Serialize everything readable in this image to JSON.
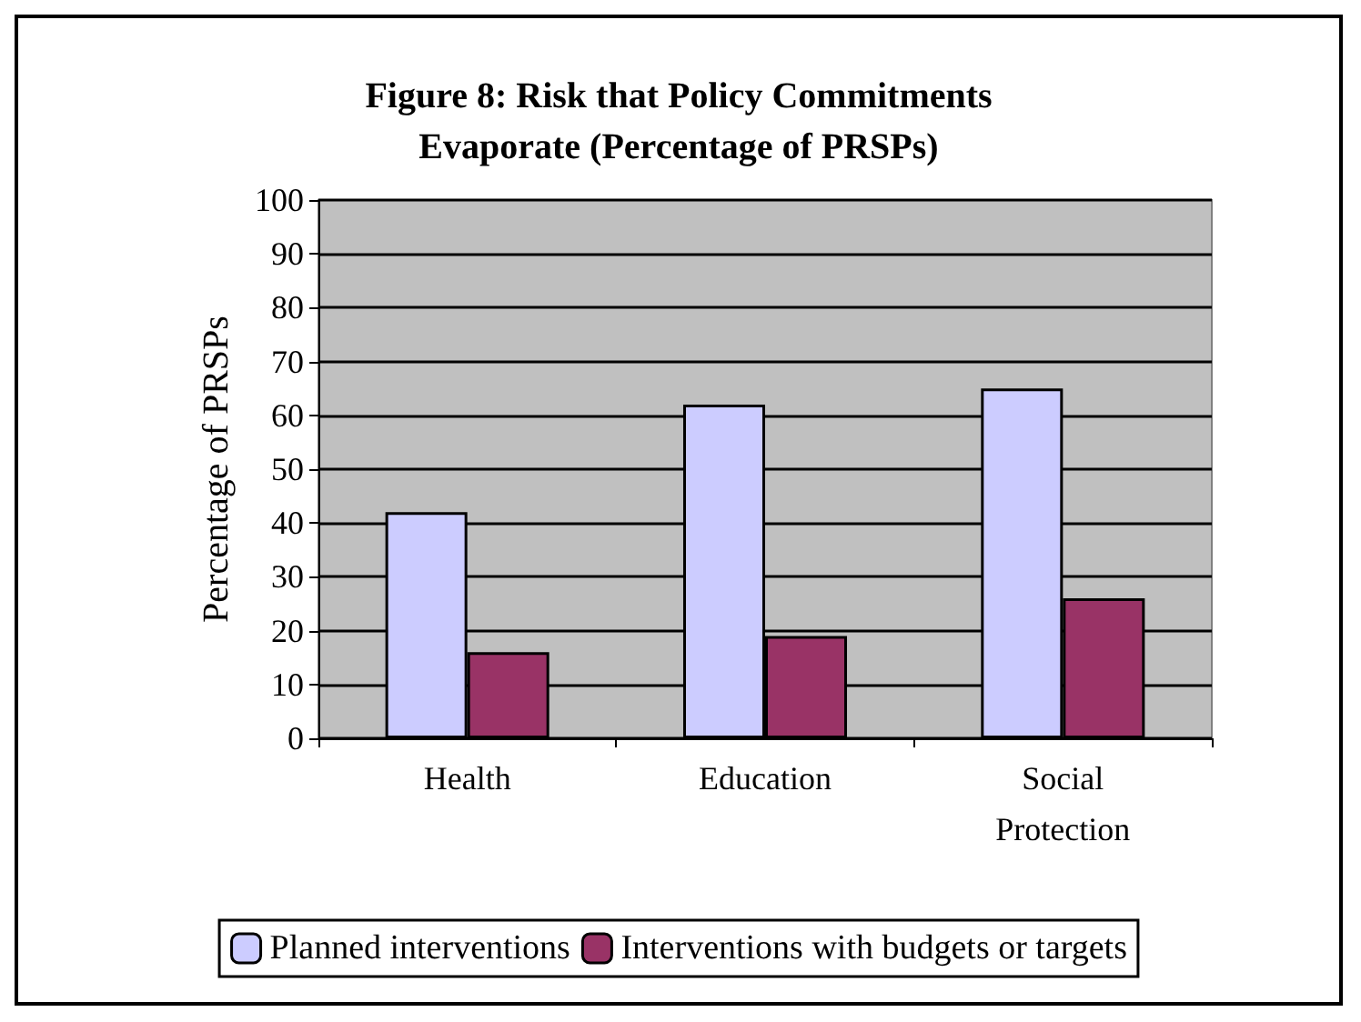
{
  "chart_data": {
    "type": "bar",
    "title": "Figure 8: Risk that Policy Commitments\nEvaporate (Percentage of PRSPs)",
    "ylabel": "Percentage of PRSPs",
    "categories": [
      "Health",
      "Education",
      "Social\nProtection"
    ],
    "series": [
      {
        "name": "Planned interventions",
        "color": "#ccccff",
        "values": [
          42,
          62,
          65
        ]
      },
      {
        "name": "Interventions with budgets or targets",
        "color": "#993366",
        "values": [
          16,
          19,
          26
        ]
      }
    ],
    "ylim": [
      0,
      100
    ],
    "yticks": [
      0,
      10,
      20,
      30,
      40,
      50,
      60,
      70,
      80,
      90,
      100
    ],
    "grid": "y",
    "legend": "bottom"
  }
}
